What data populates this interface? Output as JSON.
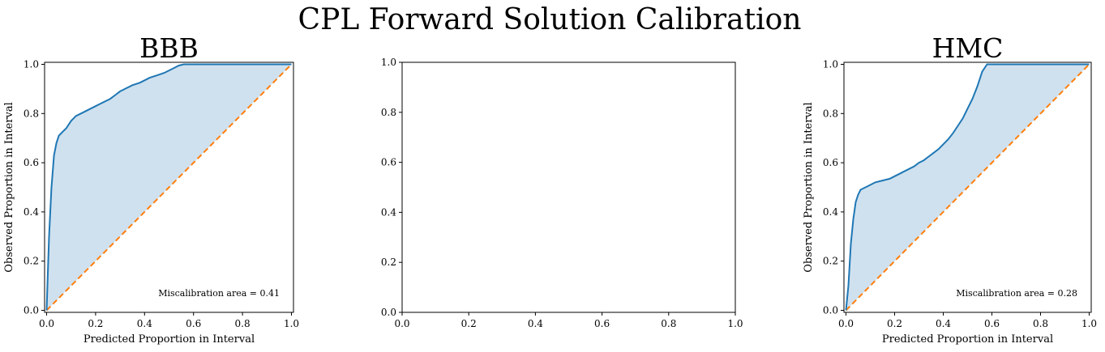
{
  "figure": {
    "title": "CPL Forward Solution Calibration"
  },
  "colors": {
    "curve": "#1f77b4",
    "fill": "#cfe1ef",
    "ideal": "#ff7f0e",
    "axis": "#000000"
  },
  "chart_data": [
    {
      "type": "line",
      "title": "BBB",
      "xlabel": "Predicted Proportion in Interval",
      "ylabel": "Observed Proportion in Interval",
      "xlim": [
        0.0,
        1.0
      ],
      "ylim": [
        0.0,
        1.0
      ],
      "xticks": [
        "0.0",
        "0.2",
        "0.4",
        "0.6",
        "0.8",
        "1.0"
      ],
      "yticks": [
        "0.0",
        "0.2",
        "0.4",
        "0.6",
        "0.8",
        "1.0"
      ],
      "annotation": "Miscalibration area = 0.41",
      "series": [
        {
          "values_x": [
            0.0,
            0.01,
            0.02,
            0.03,
            0.04,
            0.05,
            0.06,
            0.07,
            0.08,
            0.1,
            0.12,
            0.14,
            0.16,
            0.18,
            0.2,
            0.22,
            0.24,
            0.26,
            0.28,
            0.3,
            0.32,
            0.35,
            0.38,
            0.4,
            0.42,
            0.45,
            0.48,
            0.5,
            0.52,
            0.54,
            0.56,
            0.6,
            0.7,
            0.8,
            0.9,
            1.0
          ],
          "values_y": [
            0.0,
            0.3,
            0.5,
            0.63,
            0.68,
            0.71,
            0.72,
            0.73,
            0.74,
            0.77,
            0.79,
            0.8,
            0.81,
            0.82,
            0.83,
            0.84,
            0.85,
            0.86,
            0.875,
            0.89,
            0.9,
            0.915,
            0.925,
            0.935,
            0.945,
            0.955,
            0.965,
            0.975,
            0.985,
            0.995,
            1.0,
            1.0,
            1.0,
            1.0,
            1.0,
            1.0
          ]
        },
        {
          "values_x": [
            0.0,
            1.0
          ],
          "values_y": [
            0.0,
            1.0
          ]
        }
      ]
    },
    {
      "type": "line",
      "title": "",
      "xlabel": "",
      "ylabel": "",
      "xlim": [
        0.0,
        1.0
      ],
      "ylim": [
        0.0,
        1.0
      ],
      "xticks": [
        "0.0",
        "0.2",
        "0.4",
        "0.6",
        "0.8",
        "1.0"
      ],
      "yticks": [
        "0.0",
        "0.2",
        "0.4",
        "0.6",
        "0.8",
        "1.0"
      ],
      "annotation": "",
      "series": []
    },
    {
      "type": "line",
      "title": "HMC",
      "xlabel": "Predicted Proportion in Interval",
      "ylabel": "Observed Proportion in Interval",
      "xlim": [
        0.0,
        1.0
      ],
      "ylim": [
        0.0,
        1.0
      ],
      "xticks": [
        "0.0",
        "0.2",
        "0.4",
        "0.6",
        "0.8",
        "1.0"
      ],
      "yticks": [
        "0.0",
        "0.2",
        "0.4",
        "0.6",
        "0.8",
        "1.0"
      ],
      "annotation": "Miscalibration area = 0.28",
      "series": [
        {
          "values_x": [
            0.0,
            0.01,
            0.02,
            0.03,
            0.04,
            0.05,
            0.06,
            0.08,
            0.1,
            0.12,
            0.14,
            0.16,
            0.18,
            0.2,
            0.22,
            0.24,
            0.26,
            0.28,
            0.3,
            0.32,
            0.34,
            0.36,
            0.38,
            0.4,
            0.42,
            0.44,
            0.46,
            0.48,
            0.5,
            0.52,
            0.54,
            0.56,
            0.58,
            0.6,
            0.7,
            0.8,
            0.9,
            1.0
          ],
          "values_y": [
            0.0,
            0.1,
            0.27,
            0.37,
            0.44,
            0.47,
            0.49,
            0.5,
            0.51,
            0.52,
            0.525,
            0.53,
            0.535,
            0.545,
            0.555,
            0.565,
            0.575,
            0.585,
            0.6,
            0.61,
            0.625,
            0.64,
            0.655,
            0.675,
            0.695,
            0.72,
            0.75,
            0.78,
            0.82,
            0.86,
            0.91,
            0.97,
            1.0,
            1.0,
            1.0,
            1.0,
            1.0,
            1.0
          ]
        },
        {
          "values_x": [
            0.0,
            1.0
          ],
          "values_y": [
            0.0,
            1.0
          ]
        }
      ]
    }
  ]
}
